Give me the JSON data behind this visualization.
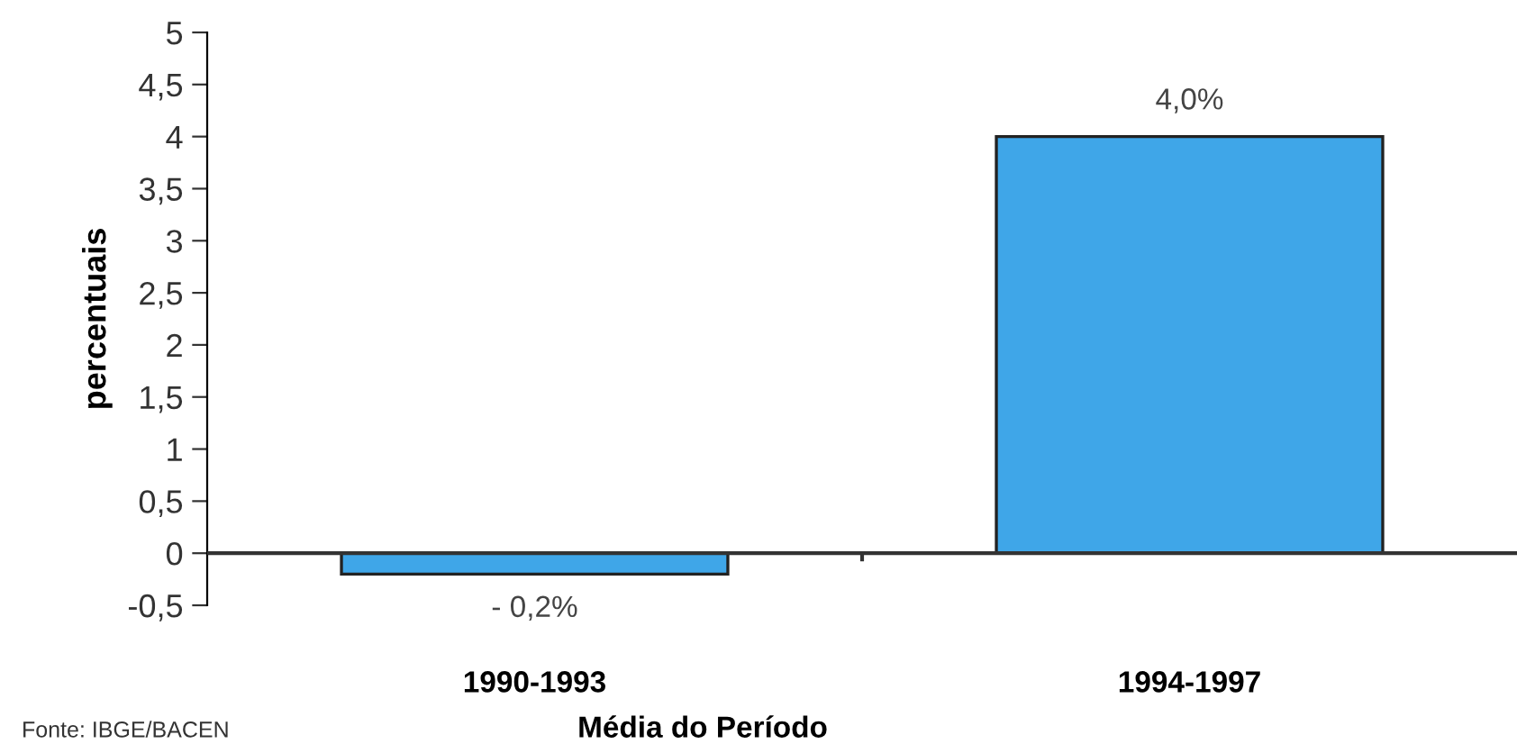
{
  "chart_data": {
    "type": "bar",
    "xlabel": "Média do Período",
    "ylabel": "percentuais",
    "categories": [
      "1990-1993",
      "1994-1997"
    ],
    "values": [
      -0.2,
      4.0
    ],
    "color": "#3fa6e8",
    "value_labels": [
      "- 0,2%",
      "4,0%"
    ],
    "ylim": [
      -0.5,
      5
    ],
    "yticks": [
      {
        "value": -0.5,
        "label": "-0,5"
      },
      0,
      {
        "value": 0.5,
        "label": "0,5"
      },
      1,
      {
        "value": 1.5,
        "label": "1,5"
      },
      2,
      {
        "value": 2.5,
        "label": "2,5"
      },
      3,
      {
        "value": 3.5,
        "label": "3,5"
      },
      4,
      {
        "value": 4.5,
        "label": "4,5"
      },
      5
    ],
    "annotations": [
      "Fonte: IBGE/BACEN"
    ]
  }
}
